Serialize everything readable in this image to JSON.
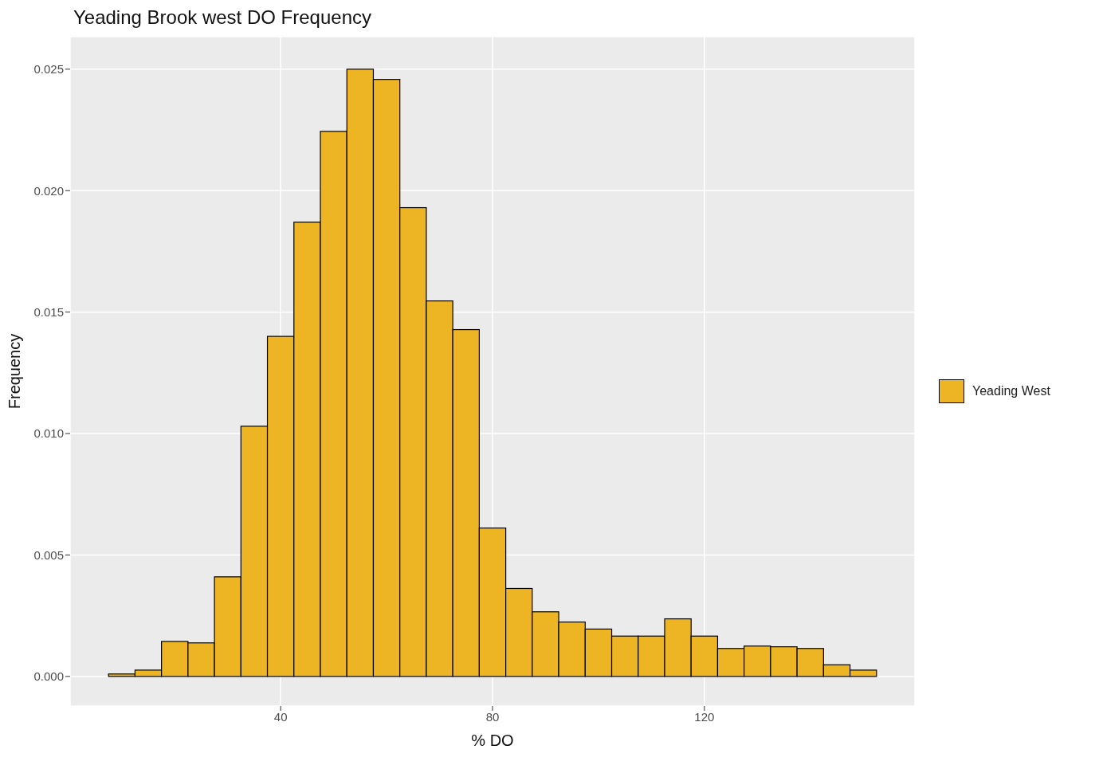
{
  "chart_data": {
    "type": "histogram",
    "title": "Yeading Brook west DO Frequency",
    "xlabel": "% DO",
    "ylabel": "Frequency",
    "bins": [
      7.5,
      12.5,
      17.5,
      22.5,
      27.5,
      32.5,
      37.5,
      42.5,
      47.5,
      52.5,
      57.5,
      62.5,
      67.5,
      72.5,
      77.5,
      82.5,
      87.5,
      92.5,
      97.5,
      102.5,
      107.5,
      112.5,
      117.5,
      122.5,
      127.5,
      132.5,
      137.5,
      142.5,
      147.5,
      152.5
    ],
    "series": [
      {
        "name": "Yeading West",
        "color": "#edb523",
        "values": [
          0.0001,
          0.00026,
          0.00144,
          0.00138,
          0.0041,
          0.0103,
          0.014,
          0.0187,
          0.02244,
          0.025,
          0.02458,
          0.0193,
          0.01546,
          0.01428,
          0.00611,
          0.00362,
          0.00266,
          0.00224,
          0.00195,
          0.00166,
          0.00166,
          0.00237,
          0.00166,
          0.00115,
          0.00125,
          0.00122,
          0.00115,
          0.00048,
          0.00026
        ]
      }
    ],
    "xlim": [
      0.25,
      159.75
    ],
    "xticks": [
      40,
      80,
      120
    ],
    "ylim": [
      -0.00122,
      0.02634
    ],
    "yticks": [
      {
        "value": 0,
        "label": "0.000"
      },
      {
        "value": 0.005,
        "label": "0.005"
      },
      {
        "value": 0.01,
        "label": "0.010"
      },
      {
        "value": 0.015,
        "label": "0.015"
      },
      {
        "value": 0.02,
        "label": "0.020"
      },
      {
        "value": 0.025,
        "label": "0.025"
      }
    ],
    "grid": true,
    "legend": "right"
  }
}
